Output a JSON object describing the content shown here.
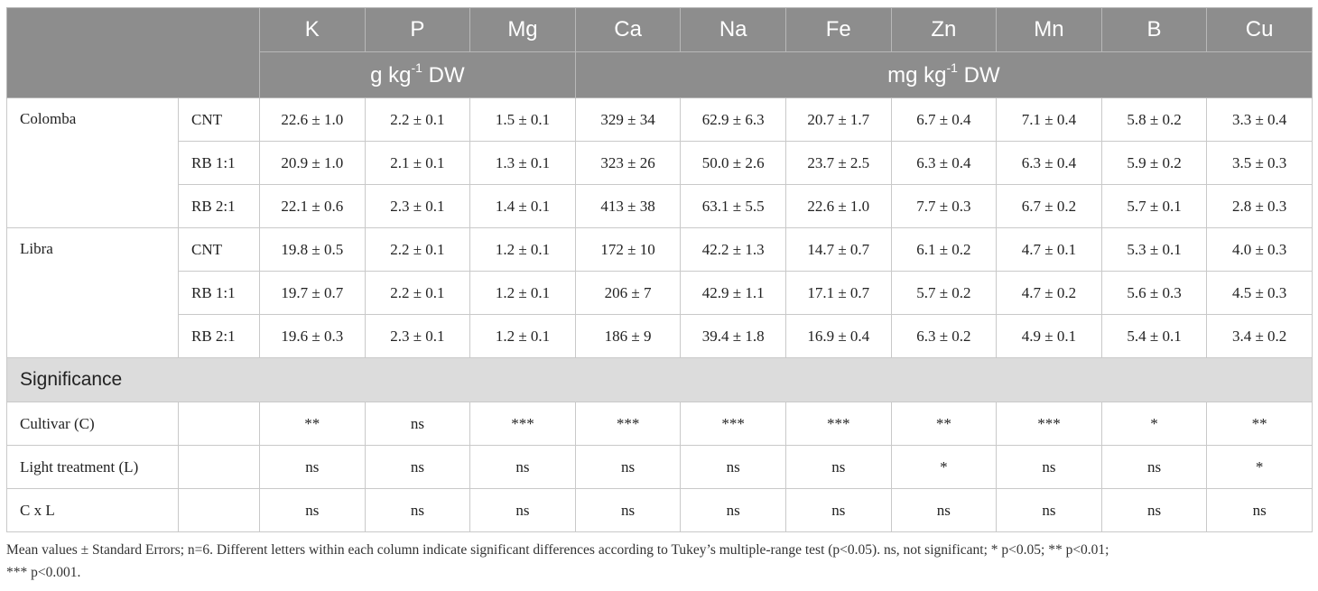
{
  "header": {
    "elements": [
      "K",
      "P",
      "Mg",
      "Ca",
      "Na",
      "Fe",
      "Zn",
      "Mn",
      "B",
      "Cu"
    ],
    "unit_macro": {
      "pre": "g kg",
      "sup": "-1",
      "post": " DW"
    },
    "unit_micro": {
      "pre": "mg kg",
      "sup": "-1",
      "post": " DW"
    }
  },
  "rows": [
    {
      "cultivar": "Colomba",
      "treatment": "CNT",
      "values": [
        "22.6 ± 1.0",
        "2.2 ± 0.1",
        "1.5 ± 0.1",
        "329 ± 34",
        "62.9 ± 6.3",
        "20.7 ± 1.7",
        "6.7 ± 0.4",
        "7.1 ± 0.4",
        "5.8 ± 0.2",
        "3.3 ± 0.4"
      ]
    },
    {
      "cultivar": "",
      "treatment": "RB 1:1",
      "values": [
        "20.9 ± 1.0",
        "2.1 ± 0.1",
        "1.3 ± 0.1",
        "323 ± 26",
        "50.0 ± 2.6",
        "23.7 ± 2.5",
        "6.3 ± 0.4",
        "6.3 ± 0.4",
        "5.9 ± 0.2",
        "3.5 ± 0.3"
      ]
    },
    {
      "cultivar": "",
      "treatment": "RB 2:1",
      "values": [
        "22.1 ± 0.6",
        "2.3 ± 0.1",
        "1.4 ± 0.1",
        "413 ± 38",
        "63.1 ± 5.5",
        "22.6 ± 1.0",
        "7.7 ± 0.3",
        "6.7 ± 0.2",
        "5.7 ± 0.1",
        "2.8 ± 0.3"
      ]
    },
    {
      "cultivar": "Libra",
      "treatment": "CNT",
      "values": [
        "19.8 ± 0.5",
        "2.2 ± 0.1",
        "1.2 ± 0.1",
        "172 ± 10",
        "42.2 ± 1.3",
        "14.7 ± 0.7",
        "6.1 ± 0.2",
        "4.7 ± 0.1",
        "5.3 ± 0.1",
        "4.0 ± 0.3"
      ]
    },
    {
      "cultivar": "",
      "treatment": "RB 1:1",
      "values": [
        "19.7 ± 0.7",
        "2.2 ± 0.1",
        "1.2 ± 0.1",
        "206 ± 7",
        "42.9 ± 1.1",
        "17.1 ± 0.7",
        "5.7 ± 0.2",
        "4.7 ± 0.2",
        "5.6 ± 0.3",
        "4.5 ± 0.3"
      ]
    },
    {
      "cultivar": "",
      "treatment": "RB 2:1",
      "values": [
        "19.6 ± 0.3",
        "2.3 ± 0.1",
        "1.2 ± 0.1",
        "186 ± 9",
        "39.4 ± 1.8",
        "16.9 ± 0.4",
        "6.3 ± 0.2",
        "4.9 ± 0.1",
        "5.4 ± 0.1",
        "3.4 ± 0.2"
      ]
    }
  ],
  "significance": {
    "title": "Significance",
    "rows": [
      {
        "label": "Cultivar (C)",
        "values": [
          "**",
          "ns",
          "***",
          "***",
          "***",
          "***",
          "**",
          "***",
          "*",
          "**"
        ]
      },
      {
        "label": "Light treatment (L)",
        "values": [
          "ns",
          "ns",
          "ns",
          "ns",
          "ns",
          "ns",
          "*",
          "ns",
          "ns",
          "*"
        ]
      },
      {
        "label": "C x L",
        "values": [
          "ns",
          "ns",
          "ns",
          "ns",
          "ns",
          "ns",
          "ns",
          "ns",
          "ns",
          "ns"
        ]
      }
    ]
  },
  "footnote": {
    "line1": "Mean values ± Standard Errors; n=6. Different letters within each column indicate significant differences according to Tukey’s multiple-range test (p<0.05). ns, not significant; * p<0.05; ** p<0.01;",
    "line2": "*** p<0.001."
  }
}
